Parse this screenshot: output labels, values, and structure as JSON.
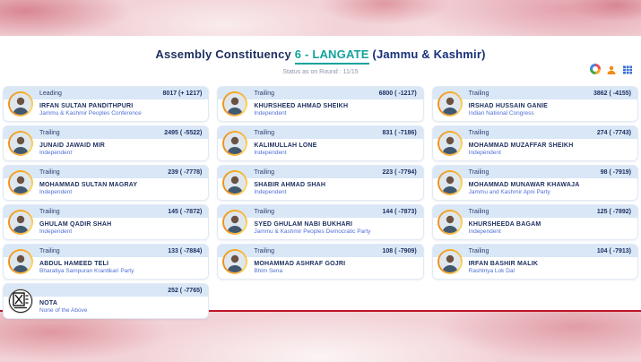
{
  "page": {
    "title_prefix": "Assembly Constituency",
    "title_constituency": "6 - LANGATE",
    "title_state": "(Jammu & Kashmir)",
    "status_line": "Status as on Round : 11/15"
  },
  "toolbar": {
    "icons": [
      {
        "name": "donut-chart-icon"
      },
      {
        "name": "candidate-person-icon",
        "color": "#f08c1a"
      },
      {
        "name": "table-grid-icon",
        "color": "#3b6fd4"
      }
    ]
  },
  "colors": {
    "accent_teal": "#13a39d",
    "navy": "#1c2e5e",
    "party_blue": "#4f6fd6",
    "card_header_blue": "#d9e7f7",
    "band_pink": "#f2d3d7",
    "divider_red": "#bf1428",
    "avatar_ring_orange": "#f5a623"
  },
  "columns": [
    {
      "cards": [
        {
          "status": "Leading",
          "votes": "8017 (+ 1217)",
          "name": "IRFAN SULTAN PANDITHPURI",
          "party": "Jammu & Kashmir Peoples Conference",
          "type": "photo"
        },
        {
          "status": "Trailing",
          "votes": "2495 ( -5522)",
          "name": "JUNAID JAWAID MIR",
          "party": "Independent",
          "type": "photo"
        },
        {
          "status": "Trailing",
          "votes": "239 ( -7778)",
          "name": "MOHAMMAD SULTAN MAGRAY",
          "party": "Independent",
          "type": "photo"
        },
        {
          "status": "Trailing",
          "votes": "145 ( -7872)",
          "name": "GHULAM QADIR SHAH",
          "party": "Independent",
          "type": "photo"
        },
        {
          "status": "Trailing",
          "votes": "133 ( -7884)",
          "name": "ABDUL HAMEED TELI",
          "party": "Bharatiya Sampuran Krantikari Party",
          "type": "photo"
        },
        {
          "status": "",
          "votes": "252 ( -7765)",
          "name": "NOTA",
          "party": "None of the Above",
          "type": "nota"
        }
      ]
    },
    {
      "cards": [
        {
          "status": "Trailing",
          "votes": "6800 ( -1217)",
          "name": "KHURSHEED AHMAD SHEIKH",
          "party": "Independent",
          "type": "photo"
        },
        {
          "status": "Trailing",
          "votes": "831 ( -7186)",
          "name": "KALIMULLAH LONE",
          "party": "Independent",
          "type": "photo"
        },
        {
          "status": "Trailing",
          "votes": "223 ( -7794)",
          "name": "SHABIR AHMAD SHAH",
          "party": "Independent",
          "type": "photo"
        },
        {
          "status": "Trailing",
          "votes": "144 ( -7873)",
          "name": "SYED GHULAM NABI BUKHARI",
          "party": "Jammu & Kashmir Peoples Democratic Party",
          "type": "photo"
        },
        {
          "status": "Trailing",
          "votes": "108 ( -7909)",
          "name": "MOHAMMAD ASHRAF GOJRI",
          "party": "Bhim Sena",
          "type": "photo"
        }
      ]
    },
    {
      "cards": [
        {
          "status": "Trailing",
          "votes": "3862 ( -4155)",
          "name": "IRSHAD HUSSAIN GANIE",
          "party": "Indian National Congress",
          "type": "photo"
        },
        {
          "status": "Trailing",
          "votes": "274 ( -7743)",
          "name": "MOHAMMAD MUZAFFAR SHEIKH",
          "party": "Independent",
          "type": "photo"
        },
        {
          "status": "Trailing",
          "votes": "98 ( -7919)",
          "name": "MOHAMMAD MUNAWAR KHAWAJA",
          "party": "Jammu and Kashmir Apni Party",
          "type": "photo"
        },
        {
          "status": "Trailing",
          "votes": "125 ( -7892)",
          "name": "KHURSHEEDA BAGAM",
          "party": "Independent",
          "type": "photo"
        },
        {
          "status": "Trailing",
          "votes": "104 ( -7913)",
          "name": "IRFAN BASHIR MALIK",
          "party": "Rashtriya Lok Dal",
          "type": "photo"
        }
      ]
    }
  ]
}
